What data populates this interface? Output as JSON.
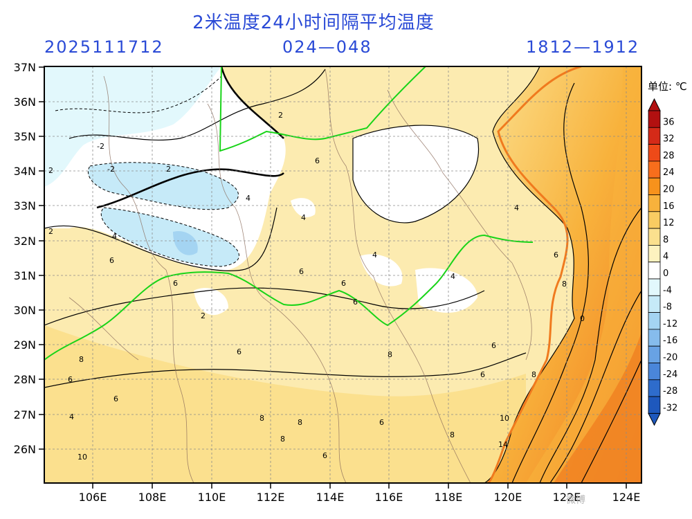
{
  "header": {
    "title": "2米温度24小时间隔平均温度",
    "run_date": "2025111712",
    "hour_range": "024—048",
    "date_range": "1812—1912"
  },
  "map": {
    "lat_labels": [
      "37N",
      "36N",
      "35N",
      "34N",
      "33N",
      "32N",
      "31N",
      "30N",
      "29N",
      "28N",
      "27N",
      "26N"
    ],
    "lon_labels": [
      "106E",
      "108E",
      "110E",
      "112E",
      "114E",
      "116E",
      "118E",
      "120E",
      "122E",
      "124E"
    ],
    "contour_labels": [
      "2",
      "-2",
      "-2",
      "2",
      "2",
      "6",
      "4",
      "4",
      "4",
      "2",
      "4",
      "6",
      "2",
      "6",
      "6",
      "6",
      "6",
      "6",
      "8",
      "8",
      "6",
      "8",
      "6",
      "10",
      "8",
      "8",
      "6",
      "4",
      "6",
      "8",
      "10",
      "14",
      "0",
      "8",
      "4",
      "4",
      "6",
      "6",
      "8",
      "6"
    ]
  },
  "colorbar": {
    "unit": "单位: ℃",
    "ticks": [
      "36",
      "32",
      "28",
      "24",
      "20",
      "16",
      "12",
      "8",
      "4",
      "0",
      "-4",
      "-8",
      "-12",
      "-16",
      "-20",
      "-24",
      "-28",
      "-32"
    ],
    "colors": [
      "#b21010",
      "#d42a18",
      "#ee4a18",
      "#f86e1c",
      "#f7921c",
      "#f8b23c",
      "#f9cc62",
      "#fbe08e",
      "#fdf2bf",
      "#ffffff",
      "#e2f8fc",
      "#c6eaf8",
      "#a4d4f2",
      "#86bcec",
      "#68a2e4",
      "#4a86da",
      "#2e6ccc",
      "#1e58bd"
    ]
  },
  "watermark": "微博"
}
